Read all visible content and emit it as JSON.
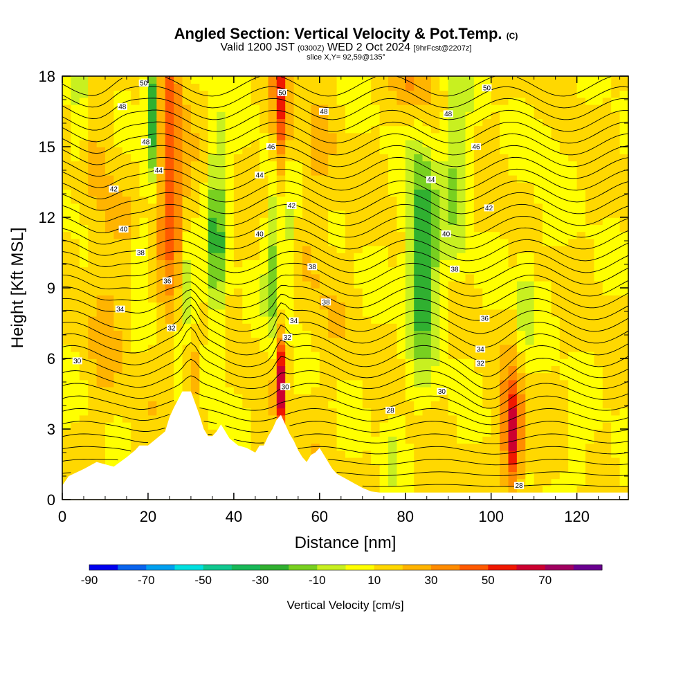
{
  "header": {
    "title": "Angled Section: Vertical Velocity & Pot.Temp.",
    "title_mark": "(C)",
    "valid_prefix": "Valid 1200 JST",
    "valid_zulu": "(0300Z)",
    "valid_date": "WED 2 Oct 2024",
    "valid_fcst": "[9hrFcst@2207z]",
    "slice": "slice X,Y= 92,59@135°"
  },
  "chart_data": {
    "type": "heatmap",
    "xlabel": "Distance [nm]",
    "ylabel": "Height [Kft MSL]",
    "xlim": [
      0,
      132
    ],
    "ylim": [
      0,
      18
    ],
    "x_ticks": [
      0,
      20,
      40,
      60,
      80,
      100,
      120
    ],
    "y_ticks": [
      0,
      3,
      6,
      9,
      12,
      15,
      18
    ],
    "colorbar": {
      "title": "Vertical Velocity [cm/s]",
      "tick_labels": [
        "-90",
        "-70",
        "-50",
        "-30",
        "-10",
        "10",
        "30",
        "50",
        "70"
      ],
      "levels": [
        -90,
        -80,
        -70,
        -60,
        -50,
        -40,
        -30,
        -20,
        -10,
        0,
        10,
        20,
        30,
        40,
        50,
        60,
        70,
        80
      ],
      "colors": [
        "#0000ee",
        "#0a64ee",
        "#00a0f0",
        "#00e0e0",
        "#10c890",
        "#18b858",
        "#30b030",
        "#78d020",
        "#c8f020",
        "#ffff00",
        "#ffd800",
        "#ffb400",
        "#ff8c00",
        "#ff5a00",
        "#f01800",
        "#cc0030",
        "#a00060",
        "#6a0090"
      ]
    },
    "theta_contours": [
      28,
      30,
      32,
      34,
      36,
      38,
      40,
      42,
      44,
      46,
      48,
      50
    ],
    "contour_labels": [
      {
        "text": "50",
        "x": 19.0,
        "y": 17.7
      },
      {
        "text": "48",
        "x": 14.0,
        "y": 16.7
      },
      {
        "text": "48",
        "x": 19.5,
        "y": 15.2
      },
      {
        "text": "44",
        "x": 22.5,
        "y": 14.0
      },
      {
        "text": "42",
        "x": 12.0,
        "y": 13.2
      },
      {
        "text": "40",
        "x": 14.3,
        "y": 11.5
      },
      {
        "text": "38",
        "x": 18.3,
        "y": 10.5
      },
      {
        "text": "36",
        "x": 24.5,
        "y": 9.3
      },
      {
        "text": "34",
        "x": 13.5,
        "y": 8.1
      },
      {
        "text": "32",
        "x": 25.5,
        "y": 7.3
      },
      {
        "text": "30",
        "x": 3.5,
        "y": 5.9
      },
      {
        "text": "50",
        "x": 51.3,
        "y": 17.3
      },
      {
        "text": "48",
        "x": 61.0,
        "y": 16.5
      },
      {
        "text": "46",
        "x": 48.7,
        "y": 15.0
      },
      {
        "text": "44",
        "x": 46.0,
        "y": 13.8
      },
      {
        "text": "42",
        "x": 53.5,
        "y": 12.5
      },
      {
        "text": "40",
        "x": 46.0,
        "y": 11.3
      },
      {
        "text": "38",
        "x": 58.3,
        "y": 9.9
      },
      {
        "text": "38",
        "x": 61.5,
        "y": 8.4
      },
      {
        "text": "34",
        "x": 54.0,
        "y": 7.6
      },
      {
        "text": "32",
        "x": 52.5,
        "y": 6.9
      },
      {
        "text": "30",
        "x": 52.0,
        "y": 4.8
      },
      {
        "text": "50",
        "x": 99.0,
        "y": 17.5
      },
      {
        "text": "48",
        "x": 90.0,
        "y": 16.4
      },
      {
        "text": "46",
        "x": 96.5,
        "y": 15.0
      },
      {
        "text": "44",
        "x": 86.0,
        "y": 13.6
      },
      {
        "text": "42",
        "x": 99.5,
        "y": 12.4
      },
      {
        "text": "40",
        "x": 89.5,
        "y": 11.3
      },
      {
        "text": "38",
        "x": 91.5,
        "y": 9.8
      },
      {
        "text": "36",
        "x": 98.5,
        "y": 7.7
      },
      {
        "text": "34",
        "x": 97.5,
        "y": 6.4
      },
      {
        "text": "32",
        "x": 97.5,
        "y": 5.8
      },
      {
        "text": "30",
        "x": 88.5,
        "y": 4.6
      },
      {
        "text": "28",
        "x": 76.5,
        "y": 3.8
      },
      {
        "text": "28",
        "x": 106.5,
        "y": 0.6
      }
    ]
  }
}
